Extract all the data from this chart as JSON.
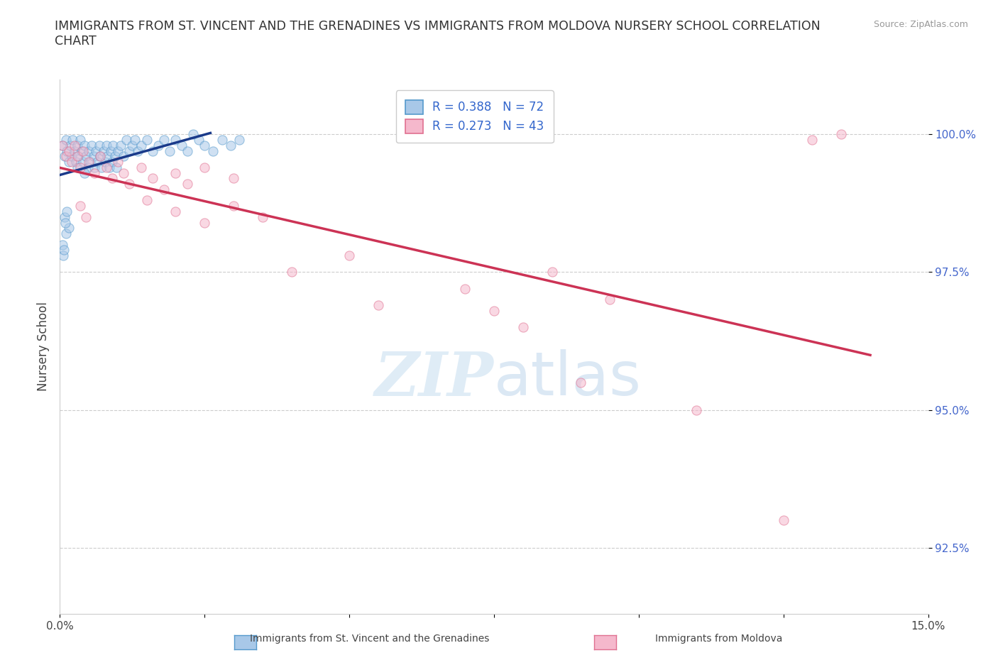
{
  "title": "IMMIGRANTS FROM ST. VINCENT AND THE GRENADINES VS IMMIGRANTS FROM MOLDOVA NURSERY SCHOOL CORRELATION\nCHART",
  "ylabel": "Nursery School",
  "source_text": "Source: ZipAtlas.com",
  "watermark_zip": "ZIP",
  "watermark_atlas": "atlas",
  "xlim": [
    0.0,
    15.0
  ],
  "ylim": [
    91.3,
    101.0
  ],
  "xtick_labels": [
    "0.0%",
    "",
    "",
    "",
    "",
    "",
    "15.0%"
  ],
  "ytick_labels": [
    "92.5%",
    "95.0%",
    "97.5%",
    "100.0%"
  ],
  "yticks": [
    92.5,
    95.0,
    97.5,
    100.0
  ],
  "xticks": [
    0.0,
    2.5,
    5.0,
    7.5,
    10.0,
    12.5,
    15.0
  ],
  "blue_color": "#a8c8e8",
  "blue_edge_color": "#5599cc",
  "pink_color": "#f5b8cc",
  "pink_edge_color": "#e07090",
  "trend_blue": "#1a3a8a",
  "trend_pink": "#cc3355",
  "R_blue": 0.388,
  "N_blue": 72,
  "R_pink": 0.273,
  "N_pink": 43,
  "legend_label_blue": "Immigrants from St. Vincent and the Grenadines",
  "legend_label_pink": "Immigrants from Moldova",
  "background_color": "#ffffff",
  "grid_color": "#cccccc",
  "marker_size": 10,
  "marker_alpha": 0.55,
  "blue_x": [
    0.05,
    0.08,
    0.1,
    0.12,
    0.15,
    0.18,
    0.2,
    0.22,
    0.25,
    0.28,
    0.3,
    0.3,
    0.32,
    0.35,
    0.38,
    0.4,
    0.42,
    0.45,
    0.48,
    0.5,
    0.52,
    0.55,
    0.58,
    0.6,
    0.62,
    0.65,
    0.68,
    0.7,
    0.72,
    0.75,
    0.78,
    0.8,
    0.82,
    0.85,
    0.88,
    0.9,
    0.92,
    0.95,
    0.98,
    1.0,
    1.05,
    1.1,
    1.15,
    1.2,
    1.25,
    1.3,
    1.35,
    1.4,
    1.5,
    1.6,
    1.7,
    1.8,
    1.9,
    2.0,
    2.1,
    2.2,
    2.3,
    2.4,
    2.5,
    2.65,
    2.8,
    2.95,
    3.1,
    0.05,
    0.08,
    0.06,
    0.1,
    0.12,
    0.15,
    0.07,
    0.09,
    0.42
  ],
  "blue_y": [
    99.8,
    99.6,
    99.9,
    99.7,
    99.5,
    99.8,
    99.6,
    99.9,
    99.7,
    99.5,
    99.8,
    99.4,
    99.6,
    99.9,
    99.7,
    99.5,
    99.8,
    99.6,
    99.4,
    99.7,
    99.5,
    99.8,
    99.6,
    99.4,
    99.7,
    99.5,
    99.8,
    99.6,
    99.4,
    99.7,
    99.5,
    99.8,
    99.6,
    99.4,
    99.7,
    99.5,
    99.8,
    99.6,
    99.4,
    99.7,
    99.8,
    99.6,
    99.9,
    99.7,
    99.8,
    99.9,
    99.7,
    99.8,
    99.9,
    99.7,
    99.8,
    99.9,
    99.7,
    99.9,
    99.8,
    99.7,
    100.0,
    99.9,
    99.8,
    99.7,
    99.9,
    99.8,
    99.9,
    98.0,
    98.5,
    97.8,
    98.2,
    98.6,
    98.3,
    97.9,
    98.4,
    99.3
  ],
  "pink_x": [
    0.05,
    0.1,
    0.15,
    0.2,
    0.25,
    0.3,
    0.35,
    0.4,
    0.5,
    0.6,
    0.7,
    0.8,
    0.9,
    1.0,
    1.1,
    1.2,
    1.4,
    1.6,
    1.8,
    2.0,
    2.2,
    2.5,
    3.0,
    0.35,
    0.45,
    1.5,
    2.0,
    2.5,
    3.0,
    3.5,
    4.0,
    5.0,
    5.5,
    7.0,
    8.0,
    9.5,
    11.0,
    12.5,
    13.0,
    13.5,
    7.5,
    8.5,
    9.0
  ],
  "pink_y": [
    99.8,
    99.6,
    99.7,
    99.5,
    99.8,
    99.6,
    99.4,
    99.7,
    99.5,
    99.3,
    99.6,
    99.4,
    99.2,
    99.5,
    99.3,
    99.1,
    99.4,
    99.2,
    99.0,
    99.3,
    99.1,
    99.4,
    99.2,
    98.7,
    98.5,
    98.8,
    98.6,
    98.4,
    98.7,
    98.5,
    97.5,
    97.8,
    96.9,
    97.2,
    96.5,
    97.0,
    95.0,
    93.0,
    99.9,
    100.0,
    96.8,
    97.5,
    95.5
  ]
}
